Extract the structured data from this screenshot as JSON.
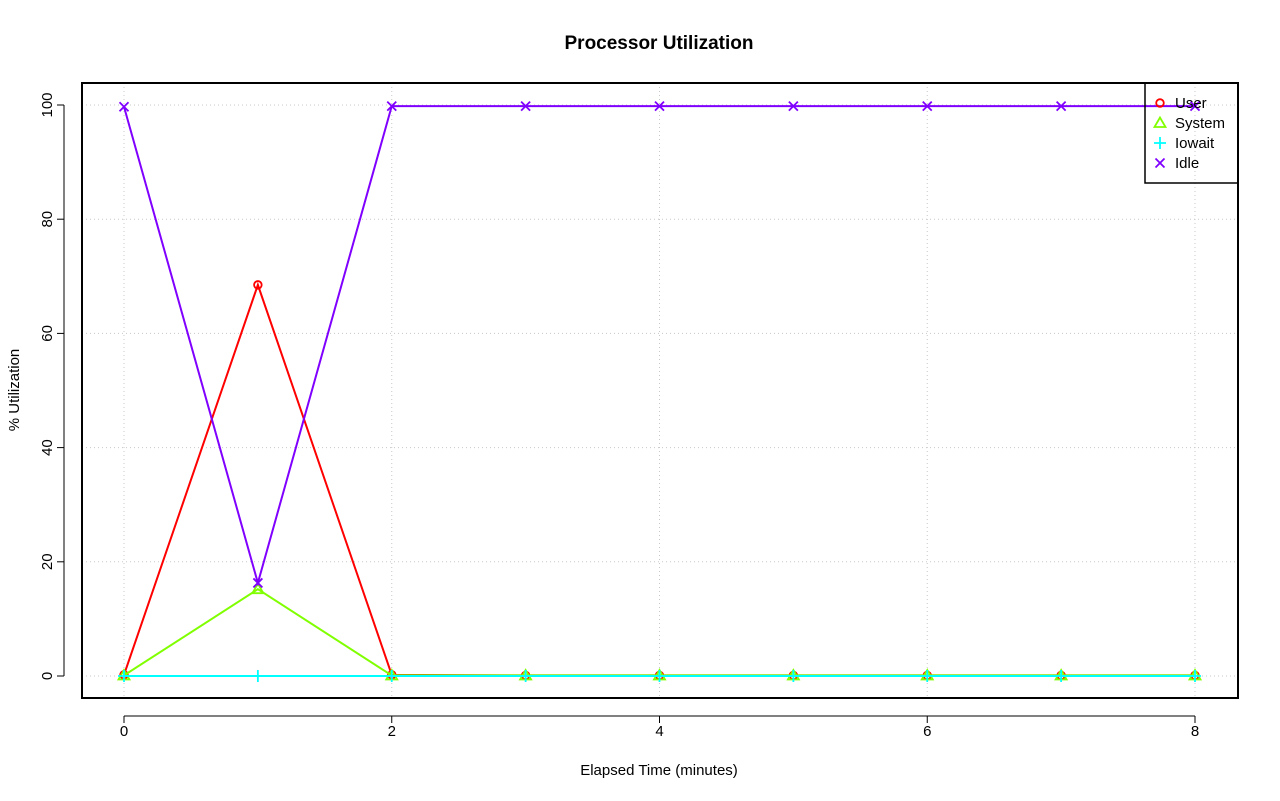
{
  "chart_data": {
    "type": "line",
    "title": "Processor Utilization",
    "xlabel": "Elapsed Time (minutes)",
    "ylabel": "% Utilization",
    "x": [
      0,
      1,
      2,
      3,
      4,
      5,
      6,
      7,
      8
    ],
    "xlim": [
      0,
      8
    ],
    "ylim": [
      0,
      100
    ],
    "xticks": [
      0,
      2,
      4,
      6,
      8
    ],
    "yticks": [
      0,
      20,
      40,
      60,
      80,
      100
    ],
    "grid": true,
    "legend_position": "top-right",
    "series": [
      {
        "name": "User",
        "color": "#ff0000",
        "marker": "circle",
        "values": [
          0.2,
          68.5,
          0.2,
          0.1,
          0.1,
          0.1,
          0.1,
          0.1,
          0.1
        ]
      },
      {
        "name": "System",
        "color": "#80ff00",
        "marker": "triangle",
        "values": [
          0.1,
          15.2,
          0.1,
          0.1,
          0.1,
          0.1,
          0.1,
          0.1,
          0.1
        ]
      },
      {
        "name": "Iowait",
        "color": "#00ffff",
        "marker": "plus",
        "values": [
          0.0,
          0.0,
          0.0,
          0.0,
          0.0,
          0.0,
          0.0,
          0.0,
          0.0
        ]
      },
      {
        "name": "Idle",
        "color": "#8000ff",
        "marker": "cross",
        "values": [
          99.7,
          16.3,
          99.8,
          99.8,
          99.8,
          99.8,
          99.8,
          99.8,
          99.8
        ]
      }
    ]
  }
}
